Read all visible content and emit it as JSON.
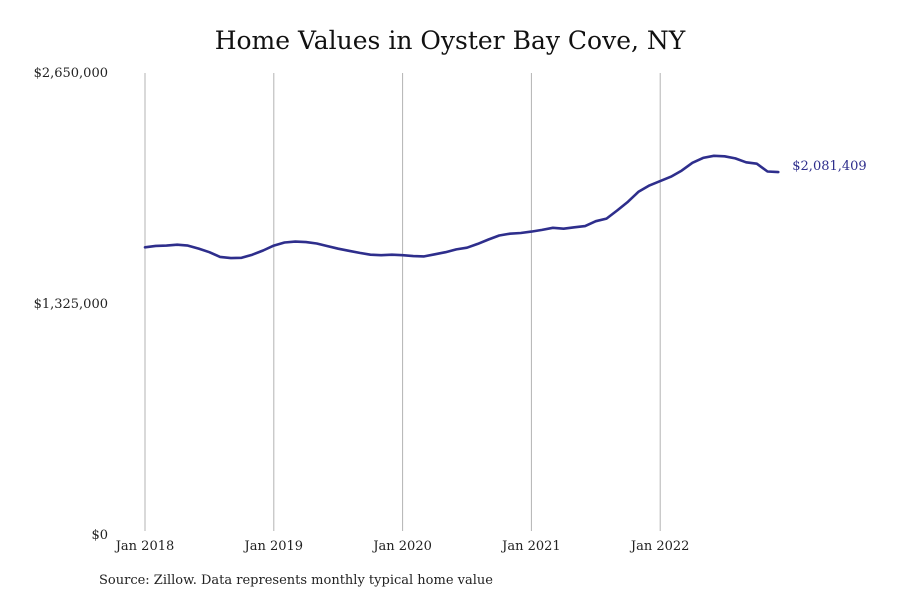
{
  "chart_data": {
    "type": "line",
    "title": "Home Values in Oyster Bay Cove, NY",
    "ylim": [
      0,
      2650000
    ],
    "y_ticks": [
      {
        "value": 2650000,
        "label": "$2,650,000"
      },
      {
        "value": 1325000,
        "label": "$1,325,000"
      },
      {
        "value": 0,
        "label": "$0"
      }
    ],
    "x_ticks": [
      {
        "value": 2018.0,
        "label": "Jan 2018"
      },
      {
        "value": 2019.0,
        "label": "Jan 2019"
      },
      {
        "value": 2020.0,
        "label": "Jan 2020"
      },
      {
        "value": 2021.0,
        "label": "Jan 2021"
      },
      {
        "value": 2022.0,
        "label": "Jan 2022"
      }
    ],
    "grid": "vertical",
    "line_color": "#2e2e8c",
    "end_label": "$2,081,409",
    "series": [
      {
        "x": [
          "2018-01",
          "2018-02",
          "2018-03",
          "2018-04",
          "2018-05",
          "2018-06",
          "2018-07",
          "2018-08",
          "2018-09",
          "2018-10",
          "2018-11",
          "2018-12",
          "2019-01",
          "2019-02",
          "2019-03",
          "2019-04",
          "2019-05",
          "2019-06",
          "2019-07",
          "2019-08",
          "2019-09",
          "2019-10",
          "2019-11",
          "2019-12",
          "2020-01",
          "2020-02",
          "2020-03",
          "2020-04",
          "2020-05",
          "2020-06",
          "2020-07",
          "2020-08",
          "2020-09",
          "2020-10",
          "2020-11",
          "2020-12",
          "2021-01",
          "2021-02",
          "2021-03",
          "2021-04",
          "2021-05",
          "2021-06",
          "2021-07",
          "2021-08",
          "2021-09",
          "2021-10",
          "2021-11",
          "2021-12",
          "2022-01",
          "2022-02",
          "2022-03",
          "2022-04",
          "2022-05",
          "2022-06",
          "2022-07",
          "2022-08",
          "2022-09",
          "2022-10",
          "2022-11",
          "2022-12"
        ],
        "values": [
          1650000,
          1658000,
          1660000,
          1665000,
          1660000,
          1643000,
          1622000,
          1595000,
          1588000,
          1590000,
          1608000,
          1632000,
          1660000,
          1678000,
          1683000,
          1680000,
          1672000,
          1657000,
          1642000,
          1630000,
          1618000,
          1608000,
          1605000,
          1608000,
          1605000,
          1600000,
          1598000,
          1610000,
          1622000,
          1638000,
          1648000,
          1670000,
          1695000,
          1718000,
          1728000,
          1732000,
          1740000,
          1750000,
          1762000,
          1757000,
          1765000,
          1772000,
          1800000,
          1815000,
          1862000,
          1912000,
          1970000,
          2005000,
          2030000,
          2055000,
          2090000,
          2135000,
          2163000,
          2175000,
          2172000,
          2160000,
          2138000,
          2130000,
          2085000,
          2081409
        ]
      }
    ]
  },
  "source": "Source: Zillow. Data represents monthly typical home value"
}
